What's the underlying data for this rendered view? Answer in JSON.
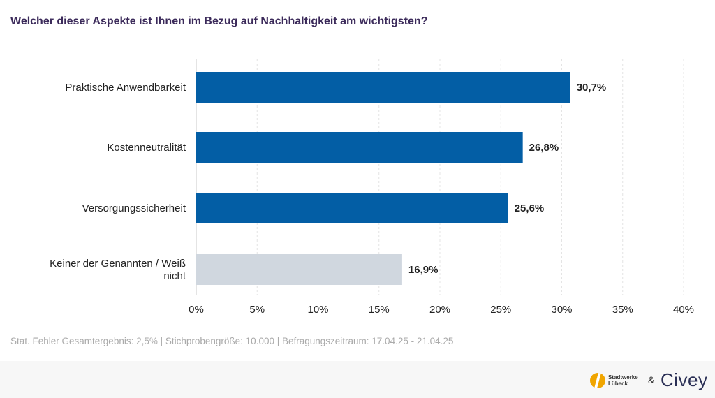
{
  "title": "Welcher dieser Aspekte ist Ihnen im Bezug auf Nachhaltigkeit am wichtigsten?",
  "chart_data": {
    "type": "bar",
    "orientation": "horizontal",
    "categories": [
      "Praktische Anwendbarkeit",
      "Kostenneutralität",
      "Versorgungssicherheit",
      "Keiner der Genannten / Weiß nicht"
    ],
    "category_lines": [
      [
        "Praktische Anwendbarkeit"
      ],
      [
        "Kostenneutralität"
      ],
      [
        "Versorgungssicherheit"
      ],
      [
        "Keiner der Genannten / Weiß",
        "nicht"
      ]
    ],
    "values": [
      30.7,
      26.8,
      25.6,
      16.9
    ],
    "value_labels": [
      "30,7%",
      "26,8%",
      "25,6%",
      "16,9%"
    ],
    "bar_colors": [
      "#035ea5",
      "#035ea5",
      "#035ea5",
      "#d0d7df"
    ],
    "xlim": [
      0,
      40
    ],
    "xticks": [
      0,
      5,
      10,
      15,
      20,
      25,
      30,
      35,
      40
    ],
    "xtick_labels": [
      "0%",
      "5%",
      "10%",
      "15%",
      "20%",
      "25%",
      "30%",
      "35%",
      "40%"
    ],
    "grid": true,
    "xlabel": "",
    "ylabel": ""
  },
  "footnote": "Stat. Fehler Gesamtergebnis: 2,5% | Stichprobengröße: 10.000 | Befragungszeitraum: 17.04.25 - 21.04.25",
  "logos": {
    "stadtwerke_line1": "Stadtwerke",
    "stadtwerke_line2": "Lübeck",
    "ampersand": "&",
    "civey": "Civey"
  }
}
